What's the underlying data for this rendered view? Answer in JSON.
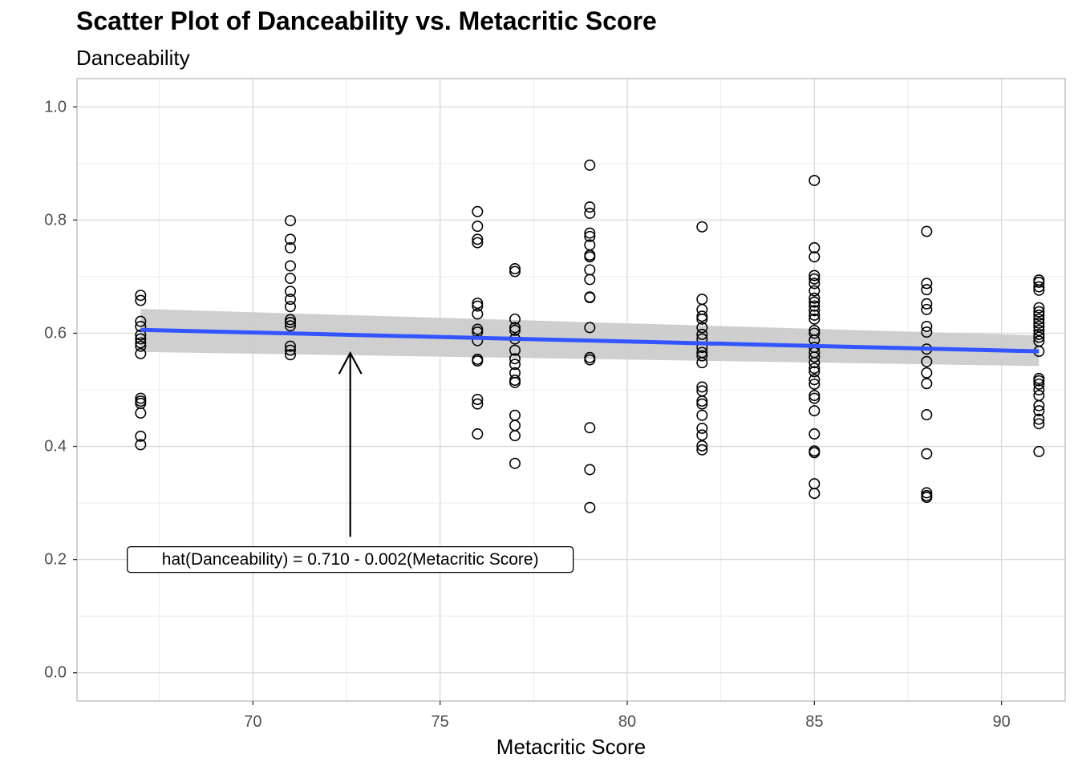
{
  "chart_data": {
    "type": "scatter",
    "title": "Scatter Plot of Danceability vs. Metacritic Score",
    "subtitle": "Danceability",
    "xlabel": "Metacritic Score",
    "ylabel": "",
    "xlim": [
      65.3,
      91.7
    ],
    "ylim": [
      -0.05,
      1.05
    ],
    "x_ticks": [
      70,
      75,
      80,
      85,
      90
    ],
    "y_ticks": [
      0.0,
      0.2,
      0.4,
      0.6,
      0.8,
      1.0
    ],
    "y_tick_labels": [
      "0.0",
      "0.2",
      "0.4",
      "0.6",
      "0.8",
      "1.0"
    ],
    "grid": true,
    "regression": {
      "x_start": 67,
      "y_start": 0.606,
      "x_end": 91,
      "y_end": 0.568,
      "ci_start": [
        0.567,
        0.643
      ],
      "ci_end": [
        0.542,
        0.596
      ],
      "line_color": "#3355ff",
      "band_color": "#cccccc"
    },
    "annotation": {
      "text": "hat(Danceability) = 0.710 - 0.002(Metacritic Score)",
      "label_x": 72.6,
      "label_y": 0.2,
      "arrow_from": [
        72.6,
        0.24
      ],
      "arrow_to": [
        72.6,
        0.565
      ]
    },
    "points": [
      [
        67,
        0.667
      ],
      [
        67,
        0.658
      ],
      [
        67,
        0.621
      ],
      [
        67,
        0.612
      ],
      [
        67,
        0.597
      ],
      [
        67,
        0.59
      ],
      [
        67,
        0.583
      ],
      [
        67,
        0.577
      ],
      [
        67,
        0.564
      ],
      [
        67,
        0.485
      ],
      [
        67,
        0.48
      ],
      [
        67,
        0.476
      ],
      [
        67,
        0.459
      ],
      [
        67,
        0.418
      ],
      [
        67,
        0.403
      ],
      [
        71,
        0.799
      ],
      [
        71,
        0.766
      ],
      [
        71,
        0.751
      ],
      [
        71,
        0.719
      ],
      [
        71,
        0.697
      ],
      [
        71,
        0.674
      ],
      [
        71,
        0.66
      ],
      [
        71,
        0.647
      ],
      [
        71,
        0.624
      ],
      [
        71,
        0.619
      ],
      [
        71,
        0.613
      ],
      [
        71,
        0.577
      ],
      [
        71,
        0.57
      ],
      [
        71,
        0.562
      ],
      [
        76,
        0.815
      ],
      [
        76,
        0.789
      ],
      [
        76,
        0.766
      ],
      [
        76,
        0.76
      ],
      [
        76,
        0.653
      ],
      [
        76,
        0.648
      ],
      [
        76,
        0.634
      ],
      [
        76,
        0.607
      ],
      [
        76,
        0.602
      ],
      [
        76,
        0.587
      ],
      [
        76,
        0.554
      ],
      [
        76,
        0.551
      ],
      [
        76,
        0.483
      ],
      [
        76,
        0.475
      ],
      [
        76,
        0.422
      ],
      [
        77,
        0.714
      ],
      [
        77,
        0.709
      ],
      [
        77,
        0.625
      ],
      [
        77,
        0.61
      ],
      [
        77,
        0.605
      ],
      [
        77,
        0.59
      ],
      [
        77,
        0.57
      ],
      [
        77,
        0.555
      ],
      [
        77,
        0.545
      ],
      [
        77,
        0.53
      ],
      [
        77,
        0.517
      ],
      [
        77,
        0.513
      ],
      [
        77,
        0.455
      ],
      [
        77,
        0.437
      ],
      [
        77,
        0.419
      ],
      [
        77,
        0.37
      ],
      [
        79,
        0.897
      ],
      [
        79,
        0.823
      ],
      [
        79,
        0.812
      ],
      [
        79,
        0.777
      ],
      [
        79,
        0.771
      ],
      [
        79,
        0.756
      ],
      [
        79,
        0.738
      ],
      [
        79,
        0.735
      ],
      [
        79,
        0.712
      ],
      [
        79,
        0.695
      ],
      [
        79,
        0.664
      ],
      [
        79,
        0.663
      ],
      [
        79,
        0.61
      ],
      [
        79,
        0.557
      ],
      [
        79,
        0.553
      ],
      [
        79,
        0.433
      ],
      [
        79,
        0.359
      ],
      [
        79,
        0.292
      ],
      [
        82,
        0.788
      ],
      [
        82,
        0.66
      ],
      [
        82,
        0.642
      ],
      [
        82,
        0.63
      ],
      [
        82,
        0.625
      ],
      [
        82,
        0.61
      ],
      [
        82,
        0.598
      ],
      [
        82,
        0.59
      ],
      [
        82,
        0.575
      ],
      [
        82,
        0.566
      ],
      [
        82,
        0.56
      ],
      [
        82,
        0.548
      ],
      [
        82,
        0.505
      ],
      [
        82,
        0.498
      ],
      [
        82,
        0.48
      ],
      [
        82,
        0.475
      ],
      [
        82,
        0.455
      ],
      [
        82,
        0.432
      ],
      [
        82,
        0.42
      ],
      [
        82,
        0.401
      ],
      [
        82,
        0.394
      ],
      [
        85,
        0.87
      ],
      [
        85,
        0.751
      ],
      [
        85,
        0.735
      ],
      [
        85,
        0.702
      ],
      [
        85,
        0.696
      ],
      [
        85,
        0.688
      ],
      [
        85,
        0.675
      ],
      [
        85,
        0.662
      ],
      [
        85,
        0.655
      ],
      [
        85,
        0.648
      ],
      [
        85,
        0.64
      ],
      [
        85,
        0.632
      ],
      [
        85,
        0.625
      ],
      [
        85,
        0.605
      ],
      [
        85,
        0.6
      ],
      [
        85,
        0.588
      ],
      [
        85,
        0.575
      ],
      [
        85,
        0.566
      ],
      [
        85,
        0.558
      ],
      [
        85,
        0.548
      ],
      [
        85,
        0.538
      ],
      [
        85,
        0.532
      ],
      [
        85,
        0.518
      ],
      [
        85,
        0.51
      ],
      [
        85,
        0.49
      ],
      [
        85,
        0.485
      ],
      [
        85,
        0.463
      ],
      [
        85,
        0.422
      ],
      [
        85,
        0.392
      ],
      [
        85,
        0.389
      ],
      [
        85,
        0.334
      ],
      [
        85,
        0.317
      ],
      [
        88,
        0.78
      ],
      [
        88,
        0.688
      ],
      [
        88,
        0.677
      ],
      [
        88,
        0.652
      ],
      [
        88,
        0.642
      ],
      [
        88,
        0.612
      ],
      [
        88,
        0.602
      ],
      [
        88,
        0.572
      ],
      [
        88,
        0.55
      ],
      [
        88,
        0.53
      ],
      [
        88,
        0.511
      ],
      [
        88,
        0.456
      ],
      [
        88,
        0.387
      ],
      [
        88,
        0.318
      ],
      [
        88,
        0.313
      ],
      [
        88,
        0.31
      ],
      [
        91,
        0.694
      ],
      [
        91,
        0.69
      ],
      [
        91,
        0.682
      ],
      [
        91,
        0.676
      ],
      [
        91,
        0.645
      ],
      [
        91,
        0.638
      ],
      [
        91,
        0.632
      ],
      [
        91,
        0.625
      ],
      [
        91,
        0.618
      ],
      [
        91,
        0.612
      ],
      [
        91,
        0.605
      ],
      [
        91,
        0.598
      ],
      [
        91,
        0.593
      ],
      [
        91,
        0.586
      ],
      [
        91,
        0.568
      ],
      [
        91,
        0.52
      ],
      [
        91,
        0.516
      ],
      [
        91,
        0.51
      ],
      [
        91,
        0.5
      ],
      [
        91,
        0.49
      ],
      [
        91,
        0.472
      ],
      [
        91,
        0.463
      ],
      [
        91,
        0.448
      ],
      [
        91,
        0.44
      ],
      [
        91,
        0.391
      ]
    ]
  }
}
